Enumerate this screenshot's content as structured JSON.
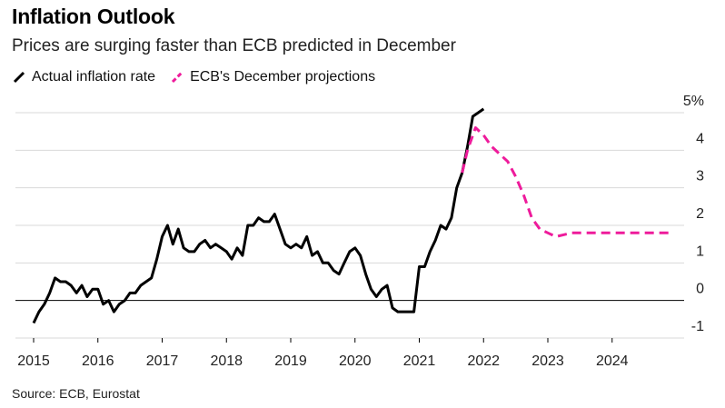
{
  "title": "Inflation Outlook",
  "subtitle": "Prices are surging faster than ECB predicted in December",
  "legend": [
    {
      "label": "Actual inflation rate",
      "color": "#000000",
      "icon": "solid-line-icon"
    },
    {
      "label": "ECB's December projections",
      "color": "#ee1b9b",
      "icon": "dashed-line-icon"
    }
  ],
  "source": "Source: ECB, Eurostat",
  "chart_data": {
    "type": "line",
    "title": "Inflation Outlook",
    "xlabel": "",
    "ylabel": "",
    "ylim": [
      -1,
      5
    ],
    "xlim": [
      2015.0,
      2025.0
    ],
    "y_ticks": [
      5,
      4,
      3,
      2,
      1,
      0,
      -1
    ],
    "y_tick_labels": [
      "5%",
      "4",
      "3",
      "2",
      "1",
      "0",
      "-1"
    ],
    "x_ticks": [
      2015,
      2016,
      2017,
      2018,
      2019,
      2020,
      2021,
      2022,
      2023,
      2024
    ],
    "x_tick_labels": [
      "2015",
      "2016",
      "2017",
      "2018",
      "2019",
      "2020",
      "2021",
      "2022",
      "2023",
      "2024"
    ],
    "grid": true,
    "series": [
      {
        "name": "Actual inflation rate",
        "color": "#000000",
        "style": "solid",
        "x": [
          2015.0,
          2015.083,
          2015.167,
          2015.25,
          2015.333,
          2015.417,
          2015.5,
          2015.583,
          2015.667,
          2015.75,
          2015.833,
          2015.917,
          2016.0,
          2016.083,
          2016.167,
          2016.25,
          2016.333,
          2016.417,
          2016.5,
          2016.583,
          2016.667,
          2016.75,
          2016.833,
          2016.917,
          2017.0,
          2017.083,
          2017.167,
          2017.25,
          2017.333,
          2017.417,
          2017.5,
          2017.583,
          2017.667,
          2017.75,
          2017.833,
          2017.917,
          2018.0,
          2018.083,
          2018.167,
          2018.25,
          2018.333,
          2018.417,
          2018.5,
          2018.583,
          2018.667,
          2018.75,
          2018.833,
          2018.917,
          2019.0,
          2019.083,
          2019.167,
          2019.25,
          2019.333,
          2019.417,
          2019.5,
          2019.583,
          2019.667,
          2019.75,
          2019.833,
          2019.917,
          2020.0,
          2020.083,
          2020.167,
          2020.25,
          2020.333,
          2020.417,
          2020.5,
          2020.583,
          2020.667,
          2020.75,
          2020.833,
          2020.917,
          2021.0,
          2021.083,
          2021.167,
          2021.25,
          2021.333,
          2021.417,
          2021.5,
          2021.583,
          2021.667,
          2021.75,
          2021.833,
          2021.917,
          2022.0
        ],
        "values": [
          -0.6,
          -0.3,
          -0.1,
          0.2,
          0.6,
          0.5,
          0.5,
          0.4,
          0.2,
          0.4,
          0.1,
          0.3,
          0.3,
          -0.1,
          0.0,
          -0.3,
          -0.1,
          0.0,
          0.2,
          0.2,
          0.4,
          0.5,
          0.6,
          1.1,
          1.7,
          2.0,
          1.5,
          1.9,
          1.4,
          1.3,
          1.3,
          1.5,
          1.6,
          1.4,
          1.5,
          1.4,
          1.3,
          1.1,
          1.4,
          1.2,
          2.0,
          2.0,
          2.2,
          2.1,
          2.1,
          2.3,
          1.9,
          1.5,
          1.4,
          1.5,
          1.4,
          1.7,
          1.2,
          1.3,
          1.0,
          1.0,
          0.8,
          0.7,
          1.0,
          1.3,
          1.4,
          1.2,
          0.7,
          0.3,
          0.1,
          0.3,
          0.4,
          -0.2,
          -0.3,
          -0.3,
          -0.3,
          -0.3,
          0.9,
          0.9,
          1.3,
          1.6,
          2.0,
          1.9,
          2.2,
          3.0,
          3.4,
          4.1,
          4.9,
          5.0,
          5.1
        ]
      },
      {
        "name": "ECB's December projections",
        "color": "#ee1b9b",
        "style": "dashed",
        "x": [
          2021.667,
          2021.75,
          2021.875,
          2022.0,
          2022.125,
          2022.25,
          2022.375,
          2022.5,
          2022.625,
          2022.75,
          2022.875,
          2023.0,
          2023.125,
          2023.25,
          2023.375,
          2023.5,
          2023.75,
          2024.0,
          2024.25,
          2024.5,
          2024.75,
          2024.95
        ],
        "values": [
          3.4,
          4.0,
          4.6,
          4.4,
          4.1,
          3.9,
          3.7,
          3.3,
          2.8,
          2.2,
          1.9,
          1.8,
          1.7,
          1.75,
          1.8,
          1.8,
          1.8,
          1.8,
          1.8,
          1.8,
          1.8,
          1.8
        ]
      }
    ]
  }
}
